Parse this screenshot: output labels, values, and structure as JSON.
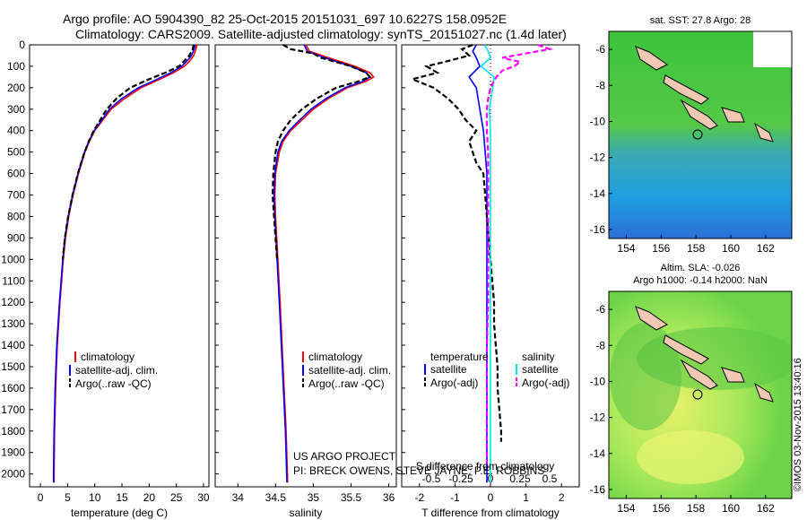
{
  "header": {
    "line1": "Argo profile: AO 5904390_82 25-Oct-2015 20151031_697 10.6227S 158.0952E",
    "line2": "Climatology: CARS2009. Satellite-adjusted climatology: synTS_20151027.nc (1.4d later)"
  },
  "credits": {
    "project": "US ARGO PROJECT",
    "pi": "PI: BRECK OWENS, STEVE JAYNE, P.E. ROBBINS",
    "imos": "©IMOS 03-Nov-2015 13:40:16"
  },
  "colors": {
    "climatology": "#ff0000",
    "satellite": "#0000ff",
    "argo": "#000000",
    "salinity_satellite": "#00e5ee",
    "salinity_argo": "#ff00ff"
  },
  "chart_data": [
    {
      "type": "line",
      "xlabel": "temperature (deg C)",
      "ylabel": "",
      "xlim": [
        -2,
        31
      ],
      "ylim": [
        2060,
        0
      ],
      "x_ticks": [
        0,
        5,
        10,
        15,
        20,
        25,
        30
      ],
      "y_ticks": [
        0,
        100,
        200,
        300,
        400,
        500,
        600,
        700,
        800,
        900,
        1000,
        1100,
        1200,
        1300,
        1400,
        1500,
        1600,
        1700,
        1800,
        1900,
        2000
      ],
      "legend": [
        "climatology",
        "satellite-adj. clim.",
        "Argo(..raw -QC)"
      ],
      "legend_position": "lower-left",
      "series": [
        {
          "name": "climatology",
          "style": "solid",
          "depth": [
            0,
            20,
            50,
            80,
            100,
            130,
            160,
            200,
            250,
            300,
            350,
            400,
            450,
            500,
            600,
            700,
            800,
            900,
            1000,
            1200,
            1400,
            1600,
            1800,
            2000,
            2040
          ],
          "values": [
            28.8,
            28.6,
            28.2,
            27.3,
            26.5,
            24.5,
            22.0,
            18.5,
            15.5,
            13.0,
            11.5,
            10.0,
            9.0,
            8.2,
            7.0,
            6.0,
            5.2,
            4.6,
            4.2,
            3.6,
            3.1,
            2.8,
            2.6,
            2.5,
            2.5
          ]
        },
        {
          "name": "satellite-adj. clim.",
          "style": "solid",
          "depth": [
            0,
            20,
            50,
            80,
            100,
            130,
            160,
            200,
            250,
            300,
            350,
            400,
            450,
            500,
            600,
            700,
            800,
            900,
            1000,
            1200,
            1400,
            1600,
            1800,
            2000,
            2040
          ],
          "values": [
            28.5,
            28.3,
            27.8,
            26.8,
            26.0,
            24.0,
            21.5,
            18.0,
            15.0,
            12.7,
            11.3,
            9.9,
            8.9,
            8.1,
            6.9,
            5.9,
            5.1,
            4.5,
            4.1,
            3.5,
            3.0,
            2.7,
            2.5,
            2.4,
            2.4
          ]
        },
        {
          "name": "Argo(..raw -QC)",
          "style": "dashed",
          "depth": [
            0,
            20,
            50,
            80,
            100,
            130,
            160,
            200,
            250,
            300,
            350,
            400,
            450,
            500,
            600,
            700,
            800,
            900,
            1000
          ],
          "values": [
            28.2,
            28.0,
            27.4,
            26.3,
            25.5,
            23.0,
            20.0,
            16.5,
            14.0,
            12.2,
            11.0,
            9.8,
            8.9,
            8.1,
            6.9,
            5.9,
            5.1,
            4.5,
            4.1
          ]
        }
      ]
    },
    {
      "type": "line",
      "xlabel": "salinity",
      "ylabel": "",
      "xlim": [
        33.7,
        36.1
      ],
      "ylim": [
        2060,
        0
      ],
      "x_ticks": [
        34,
        34.5,
        35,
        35.5,
        36
      ],
      "legend": [
        "climatology",
        "satellite-adj. clim.",
        "Argo(..raw -QC)"
      ],
      "legend_position": "lower-left",
      "series": [
        {
          "name": "climatology",
          "style": "solid",
          "depth": [
            0,
            30,
            60,
            100,
            130,
            150,
            170,
            200,
            250,
            300,
            350,
            400,
            450,
            500,
            600,
            700,
            800,
            1000,
            1200,
            1500,
            1800,
            2040
          ],
          "values": [
            34.9,
            34.95,
            35.2,
            35.55,
            35.75,
            35.8,
            35.7,
            35.45,
            35.2,
            35.0,
            34.85,
            34.7,
            34.6,
            34.55,
            34.5,
            34.49,
            34.5,
            34.53,
            34.56,
            34.6,
            34.64,
            34.66
          ]
        },
        {
          "name": "satellite-adj. clim.",
          "style": "solid",
          "depth": [
            0,
            30,
            60,
            100,
            130,
            150,
            170,
            200,
            250,
            300,
            350,
            400,
            450,
            500,
            600,
            700,
            800,
            1000,
            1200,
            1500,
            1800,
            2040
          ],
          "values": [
            34.88,
            34.92,
            35.15,
            35.5,
            35.7,
            35.75,
            35.66,
            35.42,
            35.17,
            34.97,
            34.82,
            34.68,
            34.58,
            34.53,
            34.49,
            34.48,
            34.49,
            34.52,
            34.55,
            34.59,
            34.63,
            34.65
          ]
        },
        {
          "name": "Argo(..raw -QC)",
          "style": "dashed",
          "depth": [
            0,
            20,
            40,
            60,
            80,
            100,
            130,
            150,
            170,
            200,
            250,
            300,
            350,
            400,
            450,
            500,
            600,
            700,
            800,
            1000
          ],
          "values": [
            34.6,
            34.7,
            35.0,
            35.1,
            35.3,
            35.5,
            35.7,
            35.75,
            35.6,
            35.3,
            35.05,
            34.85,
            34.7,
            34.6,
            34.53,
            34.5,
            34.47,
            34.46,
            34.48,
            34.52
          ]
        }
      ]
    },
    {
      "type": "line",
      "xlabel": "T difference from climatology",
      "x2label": "S difference from climatology",
      "xlim": [
        -2.5,
        2.5
      ],
      "x2lim": [
        -0.75,
        0.75
      ],
      "ylim": [
        2060,
        0
      ],
      "x_ticks": [
        -2,
        -1,
        0,
        1,
        2
      ],
      "x2_ticks": [
        -0.5,
        -0.25,
        0,
        0.25,
        0.5
      ],
      "x2_tick_labels": [
        "-0.5",
        "-0.25",
        "0",
        "0.25",
        "0.5"
      ],
      "legend_groups": [
        {
          "heading": "temperature",
          "entries": [
            "satellite",
            "Argo(-adj)"
          ]
        },
        {
          "heading": "salinity",
          "entries": [
            "satellite",
            "Argo(-adj)"
          ]
        }
      ],
      "legend_position": "lower",
      "series": [
        {
          "name": "temperature satellite",
          "style": "solid",
          "axis": "T",
          "depth": [
            0,
            30,
            60,
            100,
            150,
            200,
            300,
            400,
            500,
            600,
            700,
            800,
            1000,
            1200,
            1500,
            1800,
            2040
          ],
          "values": [
            -0.4,
            -0.5,
            -0.4,
            -0.3,
            -0.6,
            -0.4,
            -0.3,
            -0.2,
            -0.15,
            -0.1,
            -0.1,
            -0.1,
            -0.1,
            -0.1,
            -0.1,
            -0.1,
            -0.1
          ]
        },
        {
          "name": "temperature Argo(-adj)",
          "style": "dashed",
          "axis": "T",
          "depth": [
            0,
            20,
            50,
            80,
            100,
            130,
            160,
            200,
            250,
            300,
            350,
            400,
            450,
            500,
            550,
            600,
            700,
            800,
            900,
            1000,
            1100,
            1200,
            1300,
            1400,
            1500,
            1600,
            1700,
            1800,
            1850
          ],
          "values": [
            -0.5,
            -0.8,
            -0.6,
            -1.3,
            -1.8,
            -1.5,
            -2.2,
            -1.6,
            -1.2,
            -0.9,
            -0.7,
            -0.4,
            -0.6,
            -0.5,
            -0.4,
            -0.2,
            -0.15,
            -0.1,
            -0.05,
            0,
            0.05,
            0.1,
            0.1,
            0.15,
            0.2,
            0.2,
            0.25,
            0.3,
            0.3
          ]
        },
        {
          "name": "salinity satellite",
          "style": "solid",
          "axis": "S",
          "depth": [
            0,
            30,
            60,
            100,
            150,
            200,
            300,
            400,
            500,
            600,
            800,
            1000,
            1200,
            1500,
            1800,
            2040
          ],
          "values": [
            -0.05,
            -0.02,
            0.0,
            -0.08,
            0.03,
            0.02,
            -0.01,
            0.0,
            0.0,
            0.0,
            0.0,
            0.0,
            0.0,
            0.0,
            0.0,
            0.0
          ]
        },
        {
          "name": "salinity Argo(-adj)",
          "style": "dashed",
          "axis": "S",
          "depth": [
            0,
            20,
            40,
            60,
            80,
            100,
            120,
            150,
            200,
            250,
            300,
            400,
            500,
            600,
            700,
            800,
            1000,
            1200,
            1400,
            1600,
            1800,
            1950
          ],
          "values": [
            0.4,
            0.5,
            0.3,
            0.1,
            0.25,
            0.2,
            0.1,
            0.05,
            0.0,
            -0.02,
            -0.03,
            -0.03,
            -0.02,
            -0.02,
            -0.02,
            -0.02,
            -0.02,
            -0.02,
            -0.03,
            -0.03,
            -0.03,
            -0.03
          ]
        }
      ]
    },
    {
      "type": "heatmap",
      "title": "sat. SST: 27.8 Argo: 28",
      "xlim": [
        153,
        163.5
      ],
      "ylim": [
        -16.5,
        -5
      ],
      "x_ticks": [
        154,
        156,
        158,
        160,
        162
      ],
      "y_ticks": [
        -6,
        -8,
        -10,
        -12,
        -14,
        -16
      ],
      "marker": {
        "lon": 158.1,
        "lat": -10.6
      }
    },
    {
      "type": "heatmap",
      "title": "Altim. SLA: -0.026",
      "subtitle": "Argo h1000: -0.14 h2000: NaN",
      "xlim": [
        153,
        163.5
      ],
      "ylim": [
        -16.5,
        -5
      ],
      "x_ticks": [
        154,
        156,
        158,
        160,
        162
      ],
      "y_ticks": [
        -6,
        -8,
        -10,
        -12,
        -14,
        -16
      ],
      "marker": {
        "lon": 158.1,
        "lat": -10.6
      }
    }
  ]
}
